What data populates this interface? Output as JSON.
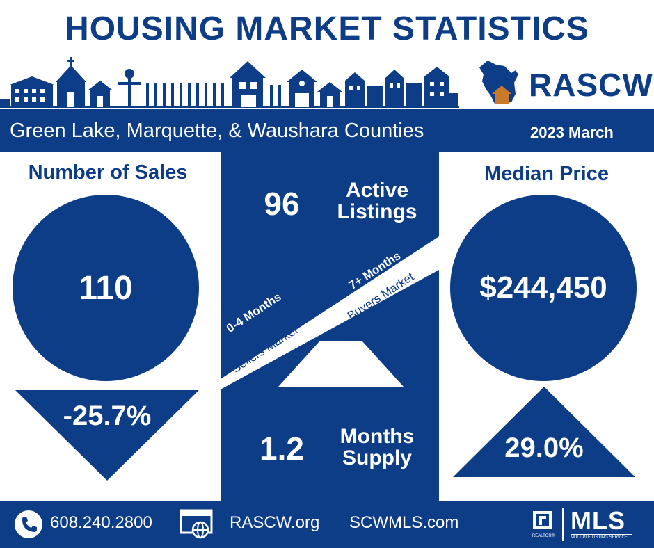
{
  "header": {
    "title": "HOUSING MARKET STATISTICS",
    "brand": "RASCW"
  },
  "band": {
    "region": "Green Lake, Marquette, & Waushara Counties",
    "date": "2023 March"
  },
  "sales": {
    "heading": "Number of Sales",
    "value": "110",
    "change": "-25.7%",
    "direction": "down"
  },
  "listings": {
    "value": "96",
    "label_line1": "Active",
    "label_line2": "Listings"
  },
  "scale": {
    "sellers_months": "0-4 Months",
    "sellers_label": "Sellers Market",
    "buyers_months": "7+ Months",
    "buyers_label": "Buyers Market"
  },
  "supply": {
    "value": "1.2",
    "label_line1": "Months",
    "label_line2": "Supply"
  },
  "price": {
    "heading": "Median Price",
    "value": "$244,450",
    "change": "29.0%",
    "direction": "up"
  },
  "footer": {
    "phone": "608.240.2800",
    "site1": "RASCW.org",
    "site2": "SCWMLS.com",
    "mls_logo": "MLS",
    "mls_caption": "MULTIPLE LISTING SERVICE",
    "realtor_caption": "REALTOR®"
  },
  "colors": {
    "navy": "#0d3d86",
    "house_orange": "#c8792a",
    "background": "#ffffff"
  },
  "icons": [
    "phone-icon",
    "web-icon",
    "realtor-logo-icon",
    "wisconsin-map-icon"
  ]
}
